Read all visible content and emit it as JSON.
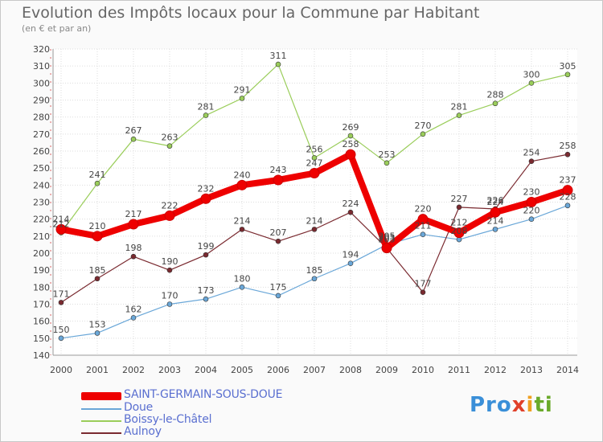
{
  "header": {
    "title": "Evolution des Impôts locaux pour la Commune par Habitant",
    "subtitle": "(en € et par an)"
  },
  "logo": {
    "parts": [
      "Pro",
      "x",
      "i",
      "ti"
    ]
  },
  "colors": {
    "main": "#ee0000",
    "doue": "#6aa7d8",
    "boissy": "#9acd5a",
    "aulnoy": "#7a2a30",
    "grid": "#dddddd",
    "axis_text": "#444444"
  },
  "chart_data": {
    "type": "line",
    "title": "Evolution des Impôts locaux pour la Commune par Habitant",
    "subtitle": "(en € et par an)",
    "x": [
      "2000",
      "2001",
      "2002",
      "2003",
      "2004",
      "2005",
      "2006",
      "2007",
      "2008",
      "2009",
      "2010",
      "2011",
      "2012",
      "2013",
      "2014"
    ],
    "ylim": [
      140,
      320
    ],
    "yticks": [
      140,
      150,
      160,
      170,
      180,
      190,
      200,
      210,
      220,
      230,
      240,
      250,
      260,
      270,
      280,
      290,
      300,
      310,
      320
    ],
    "grid": true,
    "legend_position": "bottom-left",
    "series": [
      {
        "name": "SAINT-GERMAIN-SOUS-DOUE",
        "color": "#ee0000",
        "values": [
          214,
          210,
          217,
          222,
          232,
          240,
          243,
          247,
          258,
          203,
          220,
          212,
          224,
          230,
          237
        ]
      },
      {
        "name": "Doue",
        "color": "#6aa7d8",
        "values": [
          150,
          153,
          162,
          170,
          173,
          180,
          175,
          185,
          194,
          205,
          211,
          208,
          214,
          220,
          228
        ]
      },
      {
        "name": "Boissy-le-Châtel",
        "color": "#9acd5a",
        "values": [
          212,
          241,
          267,
          263,
          281,
          291,
          311,
          256,
          269,
          253,
          270,
          281,
          288,
          300,
          305
        ]
      },
      {
        "name": "Aulnoy",
        "color": "#7a2a30",
        "values": [
          171,
          185,
          198,
          190,
          199,
          214,
          207,
          214,
          224,
          203,
          177,
          227,
          226,
          254,
          258
        ]
      }
    ]
  }
}
